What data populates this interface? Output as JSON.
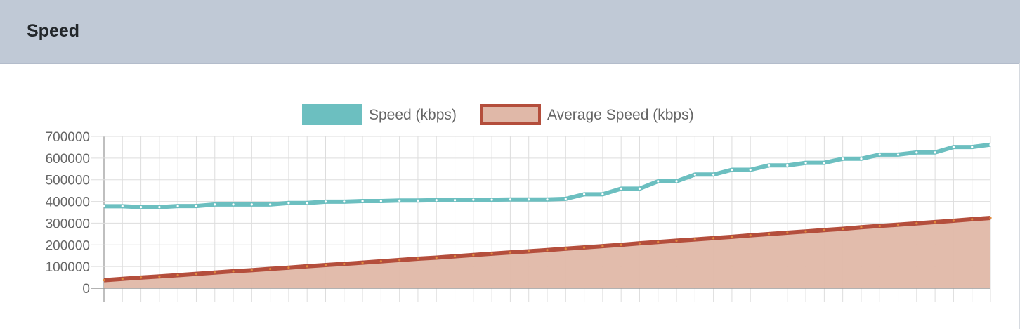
{
  "header": {
    "title": "Speed"
  },
  "chart_data": {
    "type": "line",
    "title": "",
    "xlabel": "",
    "ylabel": "",
    "ylim": [
      0,
      700000
    ],
    "yticks": [
      "700000",
      "600000",
      "500000",
      "400000",
      "300000",
      "200000",
      "100000",
      "0"
    ],
    "grid": true,
    "legend_position": "top",
    "x_count": 49,
    "series": [
      {
        "name": "Speed (kbps)",
        "color": "#6cbfc0",
        "fill": false,
        "values": [
          378000,
          378000,
          374000,
          374000,
          379000,
          379000,
          386000,
          386000,
          386000,
          386000,
          393000,
          393000,
          399000,
          399000,
          402000,
          402000,
          404000,
          404000,
          406000,
          406000,
          408000,
          408000,
          409000,
          409000,
          409000,
          412000,
          433000,
          433000,
          459000,
          459000,
          493000,
          493000,
          524000,
          524000,
          546000,
          546000,
          566000,
          566000,
          578000,
          578000,
          597000,
          597000,
          616000,
          616000,
          626000,
          626000,
          651000,
          651000,
          662000
        ]
      },
      {
        "name": "Average Speed (kbps)",
        "color": "#b44e3c",
        "fill_color": "#e0b8a8",
        "fill": true,
        "values": [
          37000,
          43000,
          49000,
          54000,
          60000,
          66000,
          72000,
          78000,
          83000,
          89000,
          95000,
          101000,
          107000,
          112000,
          118000,
          124000,
          130000,
          136000,
          141000,
          147000,
          153000,
          159000,
          165000,
          170000,
          176000,
          182000,
          188000,
          194000,
          200000,
          207000,
          213000,
          219000,
          225000,
          231000,
          237000,
          244000,
          250000,
          256000,
          262000,
          268000,
          274000,
          281000,
          287000,
          293000,
          299000,
          305000,
          311000,
          318000,
          324000
        ]
      }
    ]
  }
}
